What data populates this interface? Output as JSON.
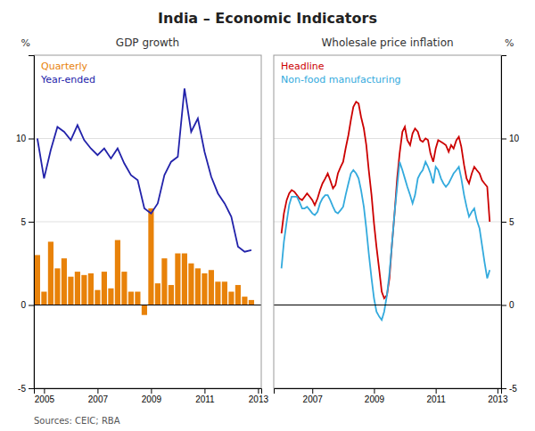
{
  "title": "India – Economic Indicators",
  "annotations": [
    "Sources: CEIC; RBA"
  ],
  "chart_data": [
    {
      "type": "bar",
      "title": "GDP growth",
      "ylabel": "%",
      "xlim": [
        2004.62,
        2013.12
      ],
      "xticks": [
        2005,
        2007,
        2009,
        2011,
        2013
      ],
      "ylim": [
        -5,
        15
      ],
      "yticks": [
        -5,
        0,
        5,
        10
      ],
      "grid": true,
      "x": [
        2004.75,
        2005.0,
        2005.25,
        2005.5,
        2005.75,
        2006.0,
        2006.25,
        2006.5,
        2006.75,
        2007.0,
        2007.25,
        2007.5,
        2007.75,
        2008.0,
        2008.25,
        2008.5,
        2008.75,
        2009.0,
        2009.25,
        2009.5,
        2009.75,
        2010.0,
        2010.25,
        2010.5,
        2010.75,
        2011.0,
        2011.25,
        2011.5,
        2011.75,
        2012.0,
        2012.25,
        2012.5,
        2012.75
      ],
      "series": [
        {
          "name": "Quarterly",
          "type": "bar",
          "color": "#e8820a",
          "values": [
            3.0,
            0.8,
            3.8,
            2.2,
            2.8,
            1.7,
            2.0,
            1.8,
            1.9,
            0.9,
            2.0,
            1.0,
            3.9,
            2.0,
            0.8,
            0.8,
            -0.6,
            5.8,
            1.3,
            2.8,
            1.2,
            3.1,
            3.1,
            2.5,
            2.2,
            1.9,
            2.1,
            1.4,
            1.4,
            0.8,
            1.2,
            0.5,
            0.3
          ]
        },
        {
          "name": "Year-ended",
          "type": "line",
          "color": "#2222aa",
          "values": [
            10.0,
            7.6,
            9.3,
            10.7,
            10.4,
            9.9,
            10.8,
            9.9,
            9.4,
            9.0,
            9.4,
            8.8,
            9.4,
            8.5,
            7.8,
            7.5,
            5.8,
            5.5,
            6.1,
            7.8,
            8.6,
            8.9,
            13.0,
            10.4,
            11.2,
            9.2,
            7.7,
            6.7,
            6.1,
            5.3,
            3.5,
            3.2,
            3.3
          ]
        }
      ]
    },
    {
      "type": "line",
      "title": "Wholesale price inflation",
      "ylabel": "%",
      "xlim": [
        2005.75,
        2013.12
      ],
      "xticks": [
        2007,
        2009,
        2011,
        2013
      ],
      "ylim": [
        -5,
        15
      ],
      "yticks": [
        -5,
        0,
        5,
        10
      ],
      "grid": true,
      "x": [
        2006.0,
        2006.08,
        2006.17,
        2006.25,
        2006.33,
        2006.42,
        2006.5,
        2006.58,
        2006.67,
        2006.75,
        2006.83,
        2006.92,
        2007.0,
        2007.08,
        2007.17,
        2007.25,
        2007.33,
        2007.42,
        2007.5,
        2007.58,
        2007.67,
        2007.75,
        2007.83,
        2007.92,
        2008.0,
        2008.08,
        2008.17,
        2008.25,
        2008.33,
        2008.42,
        2008.5,
        2008.58,
        2008.67,
        2008.75,
        2008.83,
        2008.92,
        2009.0,
        2009.08,
        2009.17,
        2009.25,
        2009.33,
        2009.42,
        2009.5,
        2009.58,
        2009.67,
        2009.75,
        2009.83,
        2009.92,
        2010.0,
        2010.08,
        2010.17,
        2010.25,
        2010.33,
        2010.42,
        2010.5,
        2010.58,
        2010.67,
        2010.75,
        2010.83,
        2010.92,
        2011.0,
        2011.08,
        2011.17,
        2011.25,
        2011.33,
        2011.42,
        2011.5,
        2011.58,
        2011.67,
        2011.75,
        2011.83,
        2011.92,
        2012.0,
        2012.08,
        2012.17,
        2012.25,
        2012.33,
        2012.42,
        2012.5,
        2012.58,
        2012.67,
        2012.75
      ],
      "series": [
        {
          "name": "Headline",
          "color": "#cc0000",
          "values": [
            4.3,
            5.5,
            6.3,
            6.7,
            6.9,
            6.8,
            6.6,
            6.4,
            6.3,
            6.5,
            6.7,
            6.5,
            6.3,
            6.0,
            6.4,
            6.9,
            7.3,
            7.6,
            7.9,
            7.5,
            7.0,
            7.2,
            7.9,
            8.3,
            8.6,
            9.4,
            10.2,
            11.1,
            11.9,
            12.2,
            12.1,
            11.3,
            10.6,
            9.6,
            8.1,
            6.6,
            4.9,
            3.5,
            2.1,
            0.8,
            0.4,
            0.6,
            1.6,
            3.6,
            5.6,
            7.6,
            9.1,
            10.4,
            10.7,
            9.9,
            9.6,
            10.3,
            10.6,
            10.4,
            9.9,
            9.8,
            10.0,
            9.9,
            9.1,
            8.6,
            9.4,
            9.9,
            9.8,
            9.7,
            9.6,
            9.2,
            9.6,
            9.4,
            9.9,
            10.1,
            9.5,
            8.4,
            7.6,
            7.3,
            7.9,
            8.3,
            8.1,
            7.9,
            7.5,
            7.3,
            7.1,
            5.0
          ]
        },
        {
          "name": "Non-food manufacturing",
          "color": "#33aadd",
          "values": [
            2.2,
            3.8,
            5.0,
            6.0,
            6.5,
            6.5,
            6.5,
            6.2,
            5.8,
            5.8,
            5.9,
            5.7,
            5.5,
            5.4,
            5.6,
            6.1,
            6.4,
            6.6,
            6.6,
            6.3,
            5.9,
            5.6,
            5.5,
            5.7,
            5.9,
            6.6,
            7.3,
            7.9,
            8.1,
            7.9,
            7.6,
            6.9,
            5.9,
            4.6,
            3.1,
            1.6,
            0.4,
            -0.4,
            -0.7,
            -0.9,
            -0.4,
            0.6,
            1.9,
            3.6,
            5.6,
            7.1,
            8.6,
            8.1,
            7.6,
            7.1,
            6.6,
            6.1,
            6.6,
            7.6,
            7.9,
            8.1,
            8.6,
            8.3,
            7.9,
            7.3,
            8.3,
            8.1,
            7.6,
            7.3,
            7.1,
            7.3,
            7.6,
            7.9,
            8.1,
            8.3,
            7.6,
            6.6,
            5.9,
            5.3,
            5.6,
            5.8,
            5.1,
            4.6,
            3.6,
            2.6,
            1.6,
            2.1
          ]
        }
      ]
    }
  ]
}
